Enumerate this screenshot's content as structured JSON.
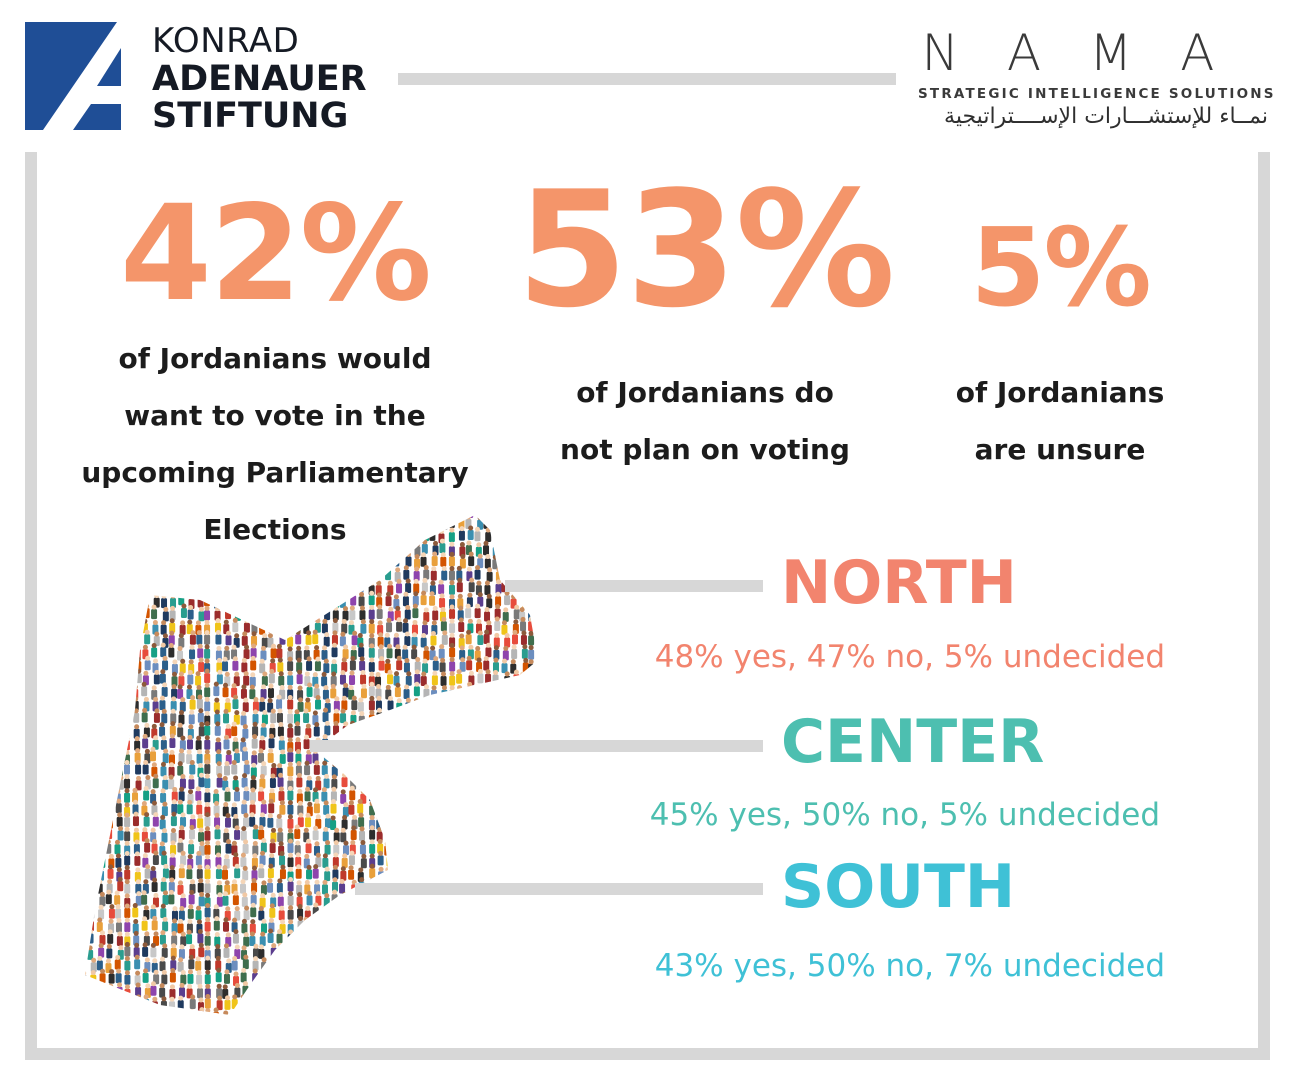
{
  "header": {
    "kas": {
      "line1": "KONRAD",
      "line2": "ADENAUER",
      "line3": "STIFTUNG",
      "logo_color": "#1f4e96"
    },
    "nama": {
      "wordmark": "NAMA",
      "tagline": "STRATEGIC INTELLIGENCE SOLUTIONS",
      "arabic": "نمــاء للإستشـــارات الإســــتراتيجية"
    }
  },
  "stats": [
    {
      "percent": "42%",
      "description": "of Jordanians would\nwant to vote in the\nupcoming Parliamentary\nElections"
    },
    {
      "percent": "53%",
      "description": "of Jordanians do\nnot plan on voting"
    },
    {
      "percent": "5%",
      "description": "of Jordanians\nare unsure"
    }
  ],
  "regions": [
    {
      "name": "NORTH",
      "stats": "48% yes, 47% no, 5% undecided",
      "color": "#f2846e"
    },
    {
      "name": "CENTER",
      "stats": "45% yes, 50% no, 5% undecided",
      "color": "#4dbfb0"
    },
    {
      "name": "SOUTH",
      "stats": "43% yes, 50% no, 7% undecided",
      "color": "#3fc1d6"
    }
  ],
  "colors": {
    "accent_orange": "#f4956a",
    "frame_gray": "#d7d7d7"
  }
}
